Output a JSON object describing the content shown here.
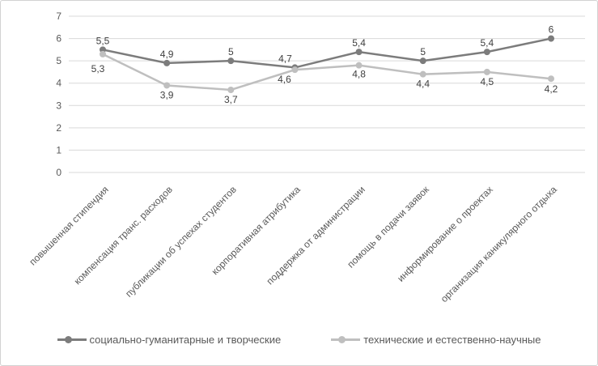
{
  "chart_data": {
    "type": "line",
    "title": "",
    "categories": [
      "повышенная стипендия",
      "компенсация транс. расходов",
      "публикации об успехах студентов",
      "корпоративная атрибутика",
      "поддержка от администрации",
      "помощь в подачи заявок",
      "информирование о проектах",
      "организация каникулярного отдыха"
    ],
    "series": [
      {
        "name": "социально-гуманитарные и творческие",
        "values": [
          5.5,
          4.9,
          5,
          4.7,
          5.4,
          5,
          5.4,
          6
        ],
        "labels": [
          "5,5",
          "4,9",
          "5",
          "4,7",
          "5,4",
          "5",
          "5,4",
          "6"
        ],
        "color": "#7c7c7c"
      },
      {
        "name": "технические и естественно-научные",
        "values": [
          5.3,
          3.9,
          3.7,
          4.6,
          4.8,
          4.4,
          4.5,
          4.2
        ],
        "labels": [
          "5,3",
          "3,9",
          "3,7",
          "4,6",
          "4,8",
          "4,4",
          "4,5",
          "4,2"
        ],
        "color": "#bfbfbf"
      }
    ],
    "xlabel": "",
    "ylabel": "",
    "ylim": [
      0,
      7
    ],
    "yticks": [
      0,
      1,
      2,
      3,
      4,
      5,
      6,
      7
    ],
    "grid": true,
    "legend_position": "bottom",
    "decimal_separator": ","
  },
  "colors": {
    "gridline": "#d9d9d9",
    "axis_text": "#595959",
    "data_label_text": "#404040",
    "frame_border": "#d2d2d2"
  }
}
